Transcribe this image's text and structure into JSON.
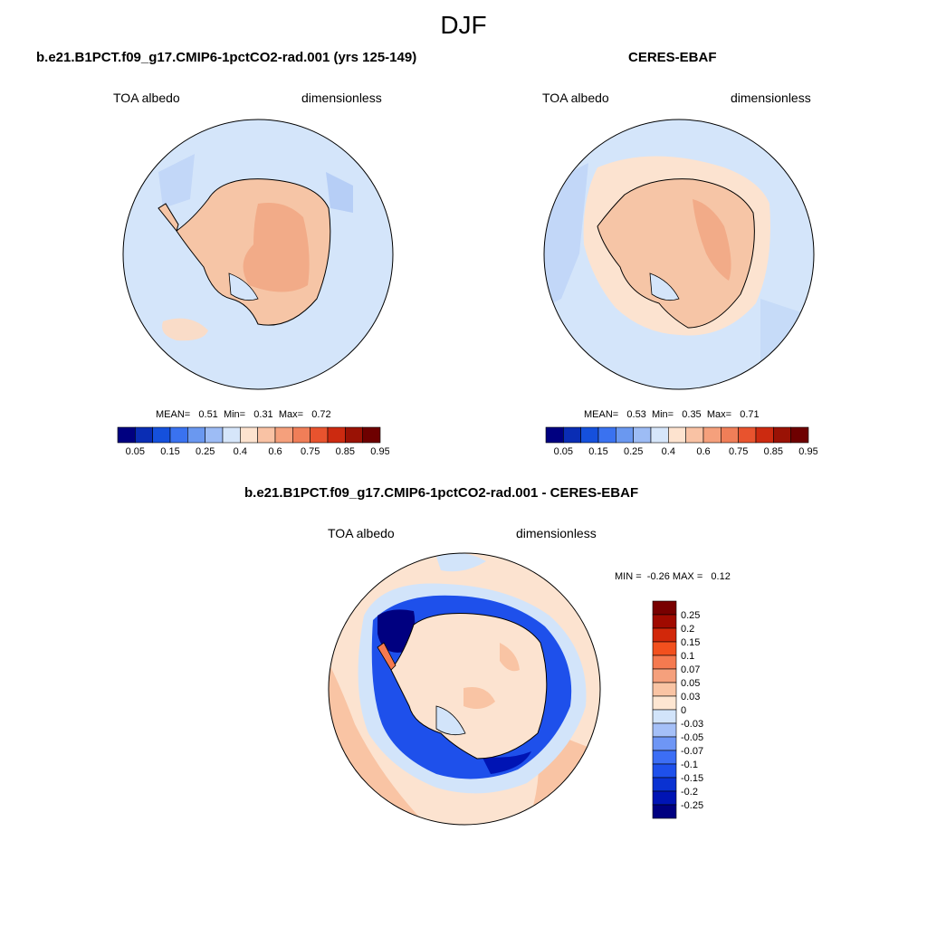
{
  "season": "DJF",
  "panel1": {
    "title": "b.e21.B1PCT.f09_g17.CMIP6-1pctCO2-rad.001 (yrs 125-149)",
    "variable": "TOA albedo",
    "units": "dimensionless",
    "mean_label": "MEAN=",
    "mean": "0.51",
    "min_label": "Min=",
    "min": "0.31",
    "max_label": "Max=",
    "max": "0.72"
  },
  "panel2": {
    "title": "CERES-EBAF",
    "variable": "TOA albedo",
    "units": "dimensionless",
    "mean_label": "MEAN=",
    "mean": "0.53",
    "min_label": "Min=",
    "min": "0.35",
    "max_label": "Max=",
    "max": "0.71"
  },
  "panel3": {
    "title": "b.e21.B1PCT.f09_g17.CMIP6-1pctCO2-rad.001 - CERES-EBAF",
    "variable": "TOA albedo",
    "units": "dimensionless",
    "min_label": "MIN =",
    "min": "-0.26",
    "max_label": "MAX =",
    "max": "0.12"
  },
  "colorbar_abs": {
    "colors": [
      "#000080",
      "#0a2db4",
      "#1550dc",
      "#3a72f0",
      "#6a98f0",
      "#9dbcf5",
      "#d6e6fa",
      "#fde3cf",
      "#f9c2a4",
      "#f5a07c",
      "#f07e58",
      "#e8532e",
      "#cc2a10",
      "#9a1205",
      "#6e0000"
    ],
    "labels": [
      "0.05",
      "0.15",
      "0.25",
      "0.4",
      "0.6",
      "0.75",
      "0.85",
      "0.95"
    ]
  },
  "colorbar_diff": {
    "colors": [
      "#000080",
      "#0014b4",
      "#0a32d2",
      "#1e50eb",
      "#3c6ef5",
      "#6e96f5",
      "#a5c0f8",
      "#d2e4fa",
      "#fde6d2",
      "#f9c4a4",
      "#f5a07c",
      "#f57a50",
      "#f2501e",
      "#d2280a",
      "#a00a00",
      "#780000"
    ],
    "labels": [
      "-0.25",
      "-0.2",
      "-0.15",
      "-0.1",
      "-0.07",
      "-0.05",
      "-0.03",
      "0",
      "0.03",
      "0.05",
      "0.07",
      "0.1",
      "0.15",
      "0.2",
      "0.25"
    ]
  }
}
